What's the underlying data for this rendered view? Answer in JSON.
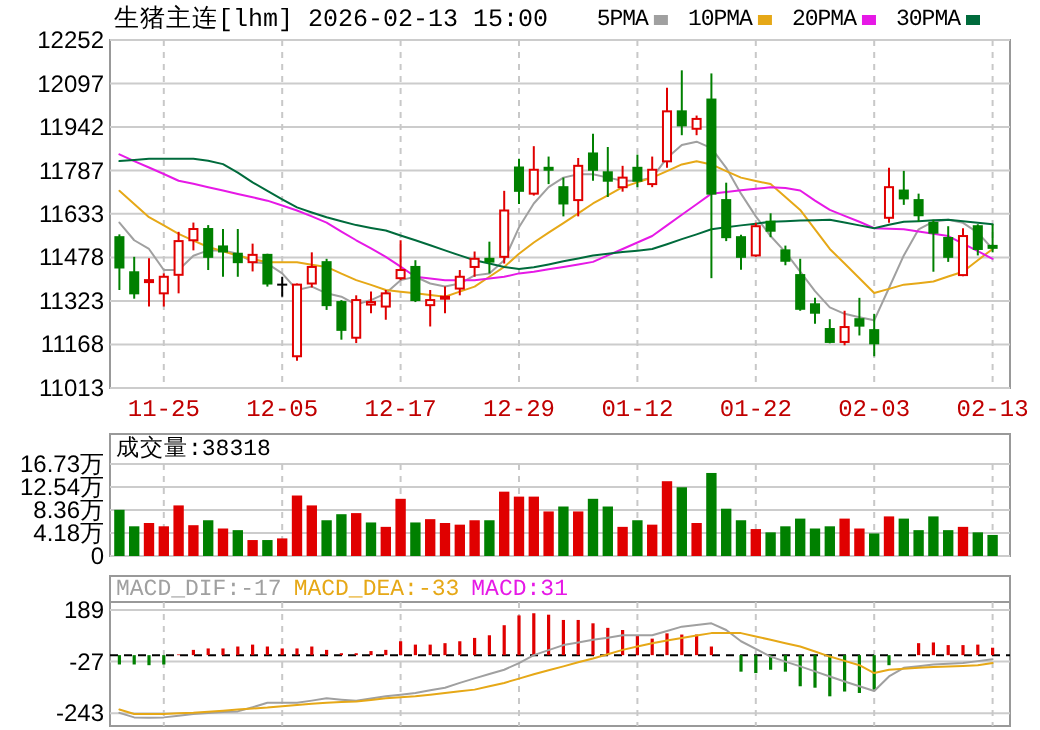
{
  "chart_data": [
    {
      "type": "candlestick",
      "title": "生猪主连[lhm] 2026-02-13 15:00",
      "legend": "top right",
      "grid": true,
      "categories": [
        null,
        null,
        null,
        "11-25",
        null,
        null,
        null,
        null,
        null,
        null,
        null,
        "12-05",
        null,
        null,
        null,
        null,
        null,
        null,
        null,
        "12-17",
        null,
        null,
        null,
        null,
        null,
        null,
        null,
        "12-29",
        null,
        null,
        null,
        null,
        null,
        null,
        null,
        "01-12",
        null,
        null,
        null,
        null,
        null,
        null,
        null,
        "01-22",
        null,
        null,
        null,
        null,
        null,
        null,
        null,
        "02-03",
        null,
        null,
        null,
        null,
        null,
        null,
        null,
        "02-13"
      ],
      "ylim": [
        11013,
        12252
      ],
      "yticks": [
        11013,
        11168,
        11323,
        11478,
        11633,
        11787,
        11942,
        12097,
        12252
      ],
      "ohlc": [
        [
          11550,
          11560,
          11362,
          11442
        ],
        [
          11425,
          11480,
          11331,
          11350
        ],
        [
          11390,
          11475,
          11303,
          11397
        ],
        [
          11350,
          11421,
          11303,
          11409
        ],
        [
          11416,
          11569,
          11350,
          11536
        ],
        [
          11539,
          11602,
          11503,
          11579
        ],
        [
          11579,
          11593,
          11433,
          11480
        ],
        [
          11517,
          11579,
          11409,
          11499
        ],
        [
          11491,
          11579,
          11409,
          11461
        ],
        [
          11461,
          11527,
          11428,
          11487
        ],
        [
          11487,
          11491,
          11374,
          11385
        ],
        [
          11381,
          11409,
          11338,
          11381
        ],
        [
          11126,
          11385,
          11110,
          11381
        ],
        [
          11385,
          11496,
          11371,
          11444
        ],
        [
          11461,
          11473,
          11291,
          11308
        ],
        [
          11319,
          11326,
          11185,
          11220
        ],
        [
          11192,
          11343,
          11173,
          11326
        ],
        [
          11310,
          11357,
          11279,
          11319
        ],
        [
          11303,
          11362,
          11256,
          11350
        ],
        [
          11404,
          11539,
          11397,
          11433
        ],
        [
          11444,
          11468,
          11319,
          11326
        ],
        [
          11308,
          11362,
          11232,
          11326
        ],
        [
          11331,
          11374,
          11279,
          11338
        ],
        [
          11367,
          11433,
          11343,
          11409
        ],
        [
          11444,
          11499,
          11409,
          11473
        ],
        [
          11473,
          11534,
          11421,
          11463
        ],
        [
          11480,
          11715,
          11456,
          11645
        ],
        [
          11798,
          11829,
          11668,
          11715
        ],
        [
          11705,
          11874,
          11698,
          11790
        ],
        [
          11797,
          11837,
          11739,
          11790
        ],
        [
          11728,
          11762,
          11624,
          11670
        ],
        [
          11682,
          11832,
          11624,
          11804
        ],
        [
          11848,
          11918,
          11751,
          11790
        ],
        [
          11781,
          11871,
          11693,
          11751
        ],
        [
          11728,
          11804,
          11712,
          11762
        ],
        [
          11797,
          11844,
          11728,
          11751
        ],
        [
          11739,
          11837,
          11728,
          11790
        ],
        [
          11820,
          12082,
          11797,
          11998
        ],
        [
          11998,
          12144,
          11913,
          11948
        ],
        [
          11936,
          11983,
          11913,
          11971
        ],
        [
          12040,
          12133,
          11404,
          11705
        ],
        [
          11682,
          11744,
          11536,
          11550
        ],
        [
          11550,
          11559,
          11434,
          11480
        ],
        [
          11485,
          11601,
          11480,
          11589
        ],
        [
          11605,
          11635,
          11550,
          11573
        ],
        [
          11503,
          11520,
          11450,
          11466
        ],
        [
          11415,
          11473,
          11288,
          11295
        ],
        [
          11311,
          11334,
          11242,
          11281
        ],
        [
          11223,
          11258,
          11172,
          11177
        ],
        [
          11177,
          11288,
          11165,
          11230
        ],
        [
          11258,
          11334,
          11200,
          11235
        ],
        [
          11219,
          11277,
          11126,
          11172
        ],
        [
          11619,
          11797,
          11601,
          11728
        ],
        [
          11716,
          11786,
          11665,
          11688
        ],
        [
          11682,
          11705,
          11605,
          11628
        ],
        [
          11601,
          11612,
          11427,
          11566
        ],
        [
          11547,
          11589,
          11462,
          11480
        ],
        [
          11415,
          11582,
          11411,
          11554
        ],
        [
          11589,
          11596,
          11485,
          11508
        ],
        [
          11519,
          11596,
          11496,
          11512
        ]
      ],
      "colors": [
        "#008000",
        "#008000",
        "#e00000",
        "#e00000",
        "#e00000",
        "#e00000",
        "#008000",
        "#008000",
        "#008000",
        "#e00000",
        "#008000",
        "#000000",
        "#e00000",
        "#e00000",
        "#008000",
        "#008000",
        "#e00000",
        "#e00000",
        "#e00000",
        "#e00000",
        "#008000",
        "#e00000",
        "#e00000",
        "#e00000",
        "#e00000",
        "#008000",
        "#e00000",
        "#008000",
        "#e00000",
        "#008000",
        "#008000",
        "#e00000",
        "#008000",
        "#008000",
        "#e00000",
        "#008000",
        "#e00000",
        "#e00000",
        "#008000",
        "#e00000",
        "#008000",
        "#008000",
        "#008000",
        "#e00000",
        "#008000",
        "#008000",
        "#008000",
        "#008000",
        "#008000",
        "#e00000",
        "#008000",
        "#008000",
        "#e00000",
        "#008000",
        "#008000",
        "#008000",
        "#008000",
        "#e00000",
        "#008000",
        "#008000"
      ],
      "series": [
        {
          "type": "line",
          "name": "5PMA",
          "color": "#a0a0a0",
          "values": [
            11602,
            11539,
            11508,
            11433,
            11433,
            11484,
            11503,
            11503,
            11491,
            11461,
            11456,
            11421,
            11362,
            11374,
            11350,
            11338,
            11310,
            11326,
            11350,
            11397,
            11409,
            11385,
            11374,
            11385,
            11414,
            11421,
            11468,
            11585,
            11670,
            11728,
            11762,
            11774,
            11774,
            11762,
            11751,
            11751,
            11762,
            11832,
            11878,
            11890,
            11867,
            11797,
            11705,
            11624,
            11554,
            11497,
            11427,
            11358,
            11300,
            11277,
            11265,
            11254,
            11369,
            11485,
            11578,
            11605,
            11612,
            11601,
            11566,
            11508
          ]
        },
        {
          "type": "line",
          "name": "10PMA",
          "color": "#e6a817",
          "values": [
            11715,
            11668,
            11621,
            11592,
            11562,
            11538,
            11515,
            11500,
            11484,
            11472,
            11461,
            11461,
            11461,
            11452,
            11444,
            11420,
            11397,
            11380,
            11362,
            11356,
            11350,
            11344,
            11338,
            11356,
            11374,
            11409,
            11444,
            11491,
            11531,
            11566,
            11600,
            11635,
            11670,
            11699,
            11728,
            11745,
            11762,
            11785,
            11809,
            11820,
            11809,
            11785,
            11762,
            11750,
            11739,
            11693,
            11647,
            11578,
            11508,
            11456,
            11404,
            11351,
            11366,
            11381,
            11386,
            11392,
            11410,
            11427,
            11468,
            11508
          ]
        },
        {
          "type": "line",
          "name": "20PMA",
          "color": "#e619e6",
          "values": [
            11845,
            11821,
            11798,
            11775,
            11751,
            11740,
            11728,
            11716,
            11704,
            11692,
            11680,
            11663,
            11645,
            11624,
            11602,
            11570,
            11539,
            11510,
            11480,
            11445,
            11409,
            11403,
            11397,
            11397,
            11397,
            11403,
            11409,
            11421,
            11427,
            11436,
            11444,
            11453,
            11462,
            11485,
            11508,
            11531,
            11554,
            11592,
            11630,
            11667,
            11705,
            11711,
            11717,
            11722,
            11728,
            11725,
            11716,
            11680,
            11647,
            11626,
            11605,
            11582,
            11580,
            11578,
            11570,
            11562,
            11554,
            11527,
            11500,
            11473
          ]
        },
        {
          "type": "line",
          "name": "30PMA",
          "color": "#006b3c",
          "values": [
            11821,
            11825,
            11829,
            11829,
            11829,
            11829,
            11822,
            11810,
            11780,
            11745,
            11715,
            11685,
            11656,
            11638,
            11621,
            11607,
            11593,
            11583,
            11574,
            11556,
            11539,
            11521,
            11503,
            11485,
            11468,
            11456,
            11444,
            11437,
            11443,
            11453,
            11464,
            11474,
            11485,
            11491,
            11497,
            11502,
            11508,
            11525,
            11543,
            11560,
            11578,
            11585,
            11592,
            11598,
            11605,
            11607,
            11609,
            11610,
            11612,
            11602,
            11592,
            11582,
            11594,
            11605,
            11607,
            11610,
            11612,
            11607,
            11601,
            11596
          ]
        }
      ]
    },
    {
      "type": "bar",
      "tick_labels": "y",
      "grid": true,
      "annotations": [
        "成交量:38318"
      ],
      "categories": [
        null,
        null,
        null,
        null,
        null,
        null,
        null,
        null,
        null,
        null,
        null,
        null,
        null,
        null,
        null,
        null,
        null,
        null,
        null,
        null,
        null,
        null,
        null,
        null,
        null,
        null,
        null,
        null,
        null,
        null,
        null,
        null,
        null,
        null,
        null,
        null,
        null,
        null,
        null,
        null,
        null,
        null,
        null,
        null,
        null,
        null,
        null,
        null,
        null,
        null,
        null,
        null,
        null,
        null,
        null,
        null,
        null,
        null,
        null,
        null
      ],
      "ylim": [
        0,
        16.73
      ],
      "yticks": [
        0,
        {
          "value": 4.18,
          "label": "4.18万"
        },
        {
          "value": 8.36,
          "label": "8.36万"
        },
        {
          "value": 12.54,
          "label": "12.54万"
        },
        {
          "value": 16.73,
          "label": "16.73万"
        }
      ],
      "values": [
        8.4,
        5.4,
        6.0,
        5.4,
        9.2,
        5.6,
        6.5,
        5.0,
        4.7,
        2.9,
        2.9,
        3.2,
        11.0,
        9.2,
        6.5,
        7.6,
        7.8,
        6.1,
        5.3,
        10.4,
        6.1,
        6.7,
        6.0,
        5.7,
        6.5,
        6.5,
        11.7,
        10.8,
        10.8,
        8.1,
        9.0,
        8.1,
        10.4,
        9.0,
        5.3,
        6.5,
        5.7,
        13.6,
        12.5,
        6.0,
        15.1,
        8.6,
        6.5,
        4.9,
        4.3,
        5.4,
        6.8,
        5.0,
        5.4,
        6.8,
        5.0,
        4.1,
        7.2,
        6.8,
        4.7,
        7.2,
        4.7,
        5.3,
        4.3,
        3.83
      ],
      "colors": [
        "#008000",
        "#008000",
        "#e00000",
        "#e00000",
        "#e00000",
        "#e00000",
        "#008000",
        "#e00000",
        "#008000",
        "#e00000",
        "#008000",
        "#e00000",
        "#e00000",
        "#e00000",
        "#008000",
        "#008000",
        "#e00000",
        "#008000",
        "#e00000",
        "#e00000",
        "#008000",
        "#e00000",
        "#e00000",
        "#e00000",
        "#e00000",
        "#008000",
        "#e00000",
        "#e00000",
        "#e00000",
        "#e00000",
        "#008000",
        "#e00000",
        "#008000",
        "#008000",
        "#e00000",
        "#008000",
        "#e00000",
        "#e00000",
        "#008000",
        "#e00000",
        "#008000",
        "#008000",
        "#008000",
        "#e00000",
        "#008000",
        "#008000",
        "#008000",
        "#008000",
        "#008000",
        "#e00000",
        "#e00000",
        "#008000",
        "#e00000",
        "#008000",
        "#008000",
        "#008000",
        "#008000",
        "#e00000",
        "#008000",
        "#008000"
      ]
    },
    {
      "type": "bar",
      "tick_labels": "y",
      "grid": true,
      "annotations": [
        "MACD_DIF:-17",
        "MACD_DEA:-33",
        "MACD:31"
      ],
      "categories": [
        null,
        null,
        null,
        null,
        null,
        null,
        null,
        null,
        null,
        null,
        null,
        null,
        null,
        null,
        null,
        null,
        null,
        null,
        null,
        null,
        null,
        null,
        null,
        null,
        null,
        null,
        null,
        null,
        null,
        null,
        null,
        null,
        null,
        null,
        null,
        null,
        null,
        null,
        null,
        null,
        null,
        null,
        null,
        null,
        null,
        null,
        null,
        null,
        null,
        null,
        null,
        null,
        null,
        null,
        null,
        null,
        null,
        null,
        null,
        null
      ],
      "ylim": [
        -296,
        222
      ],
      "yticks": [
        -243,
        -27,
        189
      ],
      "ref_lines": [
        {
          "axis": "y",
          "value": 0,
          "color": "#000000",
          "line_style": "dashed"
        }
      ],
      "series": [
        {
          "type": "line",
          "color": "#a0a0a0",
          "values": [
            -241,
            -260,
            -262,
            -260,
            -253,
            -246,
            -242,
            -238,
            -235,
            -218,
            -199,
            -199,
            -199,
            -190,
            -180,
            -186,
            -191,
            -181,
            -172,
            -165,
            -158,
            -147,
            -136,
            -116,
            -97,
            -79,
            -61,
            -33,
            0,
            21,
            42,
            53,
            64,
            73,
            83,
            83,
            83,
            101,
            119,
            126,
            133,
            105,
            58,
            26,
            -6,
            -27,
            -47,
            -68,
            -89,
            -110,
            -130,
            -150,
            -89,
            -53,
            -46,
            -39,
            -36,
            -33,
            -25,
            -17
          ]
        },
        {
          "type": "line",
          "color": "#e6a817",
          "values": [
            -227,
            -246,
            -246,
            -246,
            -243,
            -241,
            -236,
            -232,
            -227,
            -223,
            -219,
            -213,
            -208,
            -203,
            -199,
            -196,
            -194,
            -187,
            -180,
            -176,
            -172,
            -165,
            -158,
            -151,
            -144,
            -130,
            -116,
            -98,
            -80,
            -63,
            -47,
            -30,
            -14,
            4,
            22,
            36,
            50,
            61,
            72,
            82,
            92,
            92,
            92,
            78,
            64,
            50,
            36,
            15,
            -6,
            -24,
            -42,
            -75,
            -61,
            -57,
            -53,
            -50,
            -47,
            -45,
            -42,
            -33
          ]
        },
        {
          "type": "bar",
          "color": "#e619e6",
          "values": [
            -39,
            -39,
            -42,
            -39,
            3,
            22,
            28,
            28,
            36,
            44,
            36,
            28,
            28,
            36,
            22,
            8,
            8,
            17,
            22,
            58,
            44,
            44,
            50,
            58,
            72,
            83,
            125,
            166,
            175,
            169,
            147,
            147,
            133,
            114,
            105,
            83,
            69,
            91,
            86,
            86,
            36,
            0,
            -69,
            -75,
            -61,
            -69,
            -130,
            -136,
            -172,
            -152,
            -158,
            -144,
            -42,
            0,
            50,
            53,
            42,
            42,
            44,
            31
          ],
          "colors": [
            "#008000",
            "#008000",
            "#008000",
            "#008000",
            "#e00000",
            "#e00000",
            "#e00000",
            "#e00000",
            "#e00000",
            "#e00000",
            "#e00000",
            "#e00000",
            "#e00000",
            "#e00000",
            "#e00000",
            "#e00000",
            "#e00000",
            "#e00000",
            "#e00000",
            "#e00000",
            "#e00000",
            "#e00000",
            "#e00000",
            "#e00000",
            "#e00000",
            "#e00000",
            "#e00000",
            "#e00000",
            "#e00000",
            "#e00000",
            "#e00000",
            "#e00000",
            "#e00000",
            "#e00000",
            "#e00000",
            "#e00000",
            "#e00000",
            "#e00000",
            "#e00000",
            "#e00000",
            "#e00000",
            "#000000",
            "#008000",
            "#008000",
            "#008000",
            "#008000",
            "#008000",
            "#008000",
            "#008000",
            "#008000",
            "#008000",
            "#008000",
            "#008000",
            "#000000",
            "#e00000",
            "#e00000",
            "#e00000",
            "#e00000",
            "#e00000",
            "#e00000"
          ]
        }
      ]
    }
  ]
}
